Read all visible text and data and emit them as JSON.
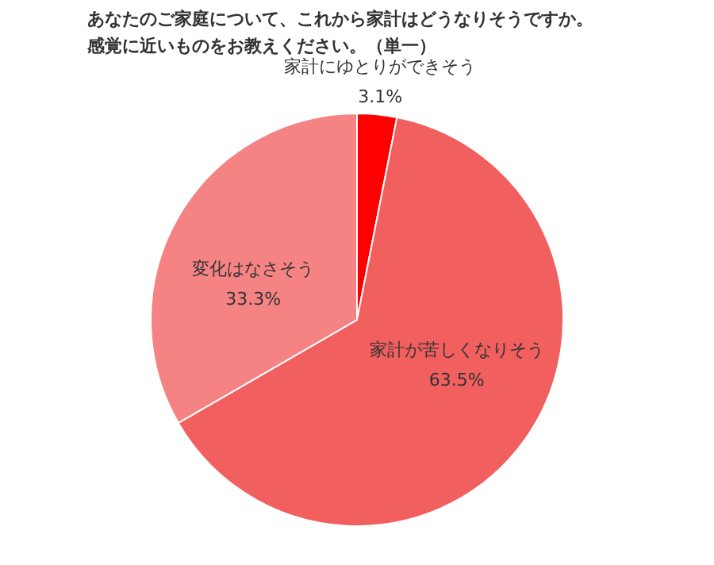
{
  "chart_data": {
    "type": "pie",
    "title": "あなたのご家庭について、これから家計はどうなりそうですか。",
    "subtitle": "感覚に近いものをお教えください。（単一）",
    "categories": [
      "家計にゆとりができそう",
      "家計が苦しくなりそう",
      "変化はなさそう"
    ],
    "values": [
      3.1,
      63.5,
      33.3
    ],
    "colors": [
      "#ff0000",
      "#f25f5f",
      "#f58383"
    ],
    "value_labels": [
      "3.1%",
      "63.5%",
      "33.3%"
    ]
  }
}
